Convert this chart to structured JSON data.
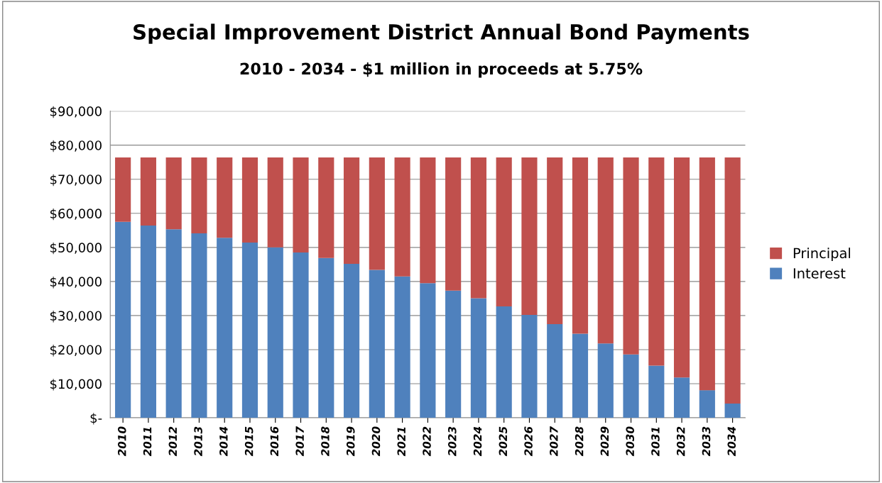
{
  "chart_data": {
    "type": "bar",
    "stacked": true,
    "title": "Special Improvement District Annual Bond Payments",
    "subtitle": "2010 - 2034 - $1 million in proceeds at 5.75%",
    "categories": [
      "2010",
      "2011",
      "2012",
      "2013",
      "2014",
      "2015",
      "2016",
      "2017",
      "2018",
      "2019",
      "2020",
      "2021",
      "2022",
      "2023",
      "2024",
      "2025",
      "2026",
      "2027",
      "2028",
      "2029",
      "2030",
      "2031",
      "2032",
      "2033",
      "2034"
    ],
    "series": [
      {
        "name": "Interest",
        "color": "#4f81bd",
        "values": [
          57500,
          56400,
          55300,
          54100,
          52800,
          51400,
          50000,
          48500,
          46900,
          45200,
          43400,
          41500,
          39500,
          37300,
          35100,
          32700,
          30200,
          27500,
          24700,
          21800,
          18600,
          15300,
          11800,
          8100,
          4200
        ]
      },
      {
        "name": "Principal",
        "color": "#c0504d",
        "values": [
          18900,
          20000,
          21100,
          22300,
          23600,
          25000,
          26400,
          27900,
          29500,
          31200,
          33000,
          34900,
          36900,
          39100,
          41300,
          43700,
          46200,
          48900,
          51700,
          54600,
          57800,
          61100,
          64600,
          68300,
          72200
        ]
      }
    ],
    "ylim": [
      0,
      90000
    ],
    "yticks": [
      {
        "value": 0,
        "label": "$-"
      },
      {
        "value": 10000,
        "label": "$10,000"
      },
      {
        "value": 20000,
        "label": "$20,000"
      },
      {
        "value": 30000,
        "label": "$30,000"
      },
      {
        "value": 40000,
        "label": "$40,000"
      },
      {
        "value": 50000,
        "label": "$50,000"
      },
      {
        "value": 60000,
        "label": "$60,000"
      },
      {
        "value": 70000,
        "label": "$70,000"
      },
      {
        "value": 80000,
        "label": "$80,000"
      },
      {
        "value": 90000,
        "label": "$90,000"
      }
    ],
    "grid": "y",
    "legend": "right"
  }
}
